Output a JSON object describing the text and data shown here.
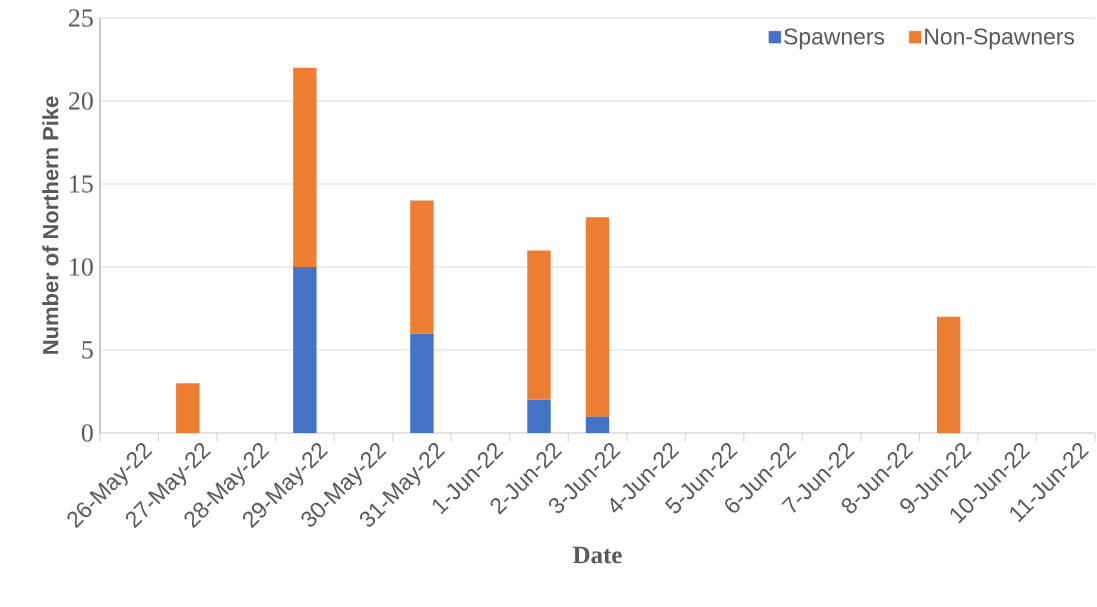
{
  "chart_data": {
    "type": "bar",
    "stacked": true,
    "xlabel": "Date",
    "ylabel": "Number of Northern Pike",
    "categories": [
      "26-May-22",
      "27-May-22",
      "28-May-22",
      "29-May-22",
      "30-May-22",
      "31-May-22",
      "1-Jun-22",
      "2-Jun-22",
      "3-Jun-22",
      "4-Jun-22",
      "5-Jun-22",
      "6-Jun-22",
      "7-Jun-22",
      "8-Jun-22",
      "9-Jun-22",
      "10-Jun-22",
      "11-Jun-22"
    ],
    "series": [
      {
        "name": "Spawners",
        "color": "#4472c4",
        "values": [
          null,
          null,
          null,
          10,
          null,
          6,
          null,
          2,
          1,
          null,
          null,
          null,
          null,
          null,
          null,
          null,
          null
        ]
      },
      {
        "name": "Non-Spawners",
        "color": "#ed7d31",
        "values": [
          null,
          3,
          null,
          12,
          null,
          8,
          null,
          9,
          12,
          null,
          null,
          null,
          null,
          null,
          7,
          null,
          null
        ]
      }
    ],
    "ylim": [
      0,
      25
    ],
    "yticks": [
      0,
      5,
      10,
      15,
      20,
      25
    ],
    "grid": "y",
    "legend": "top right"
  }
}
